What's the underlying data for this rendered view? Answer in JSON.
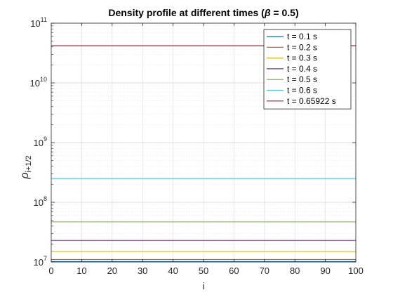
{
  "chart_data": {
    "type": "line",
    "title_main": "Density profile at different times (",
    "title_symbol": "β",
    "title_end": " = 0.5)",
    "xlabel": "i",
    "ylabel_symbol": "ρ",
    "ylabel_sub": "i+1/2",
    "y_scale": "log",
    "xlim": [
      0,
      100
    ],
    "ylim": [
      10000000.0,
      100000000000.0
    ],
    "grid": true,
    "minor_grid": true,
    "legend_position": "top-right",
    "x_ticks": [
      "0",
      "10",
      "20",
      "30",
      "40",
      "50",
      "60",
      "70",
      "80",
      "90",
      "100"
    ],
    "y_tick_values": [
      10000000.0,
      100000000.0,
      1000000000.0,
      10000000000.0,
      100000000000.0
    ],
    "y_tick_base": "10",
    "y_tick_exponents": [
      "7",
      "8",
      "9",
      "10",
      "11"
    ],
    "series": [
      {
        "name": "t = 0.1 s",
        "color": "#0072BD",
        "x": [
          0,
          100
        ],
        "y": [
          10200000.0,
          10200000.0
        ]
      },
      {
        "name": "t = 0.2 s",
        "color": "#D95319",
        "x": [
          0,
          100
        ],
        "y": [
          11000000.0,
          11000000.0
        ]
      },
      {
        "name": "t = 0.3 s",
        "color": "#EDB120",
        "x": [
          0,
          100
        ],
        "y": [
          15000000.0,
          15000000.0
        ]
      },
      {
        "name": "t = 0.4 s",
        "color": "#7E2F8E",
        "x": [
          0,
          100
        ],
        "y": [
          23000000.0,
          23000000.0
        ]
      },
      {
        "name": "t = 0.5 s",
        "color": "#77AC30",
        "x": [
          0,
          100
        ],
        "y": [
          47000000.0,
          47000000.0
        ]
      },
      {
        "name": "t = 0.6 s",
        "color": "#4DBEEE",
        "x": [
          0,
          100
        ],
        "y": [
          250000000.0,
          250000000.0
        ]
      },
      {
        "name": "t = 0.65922 s",
        "color": "#A2142F",
        "x": [
          0,
          100
        ],
        "y": [
          42000000000.0,
          42000000000.0
        ]
      }
    ]
  }
}
